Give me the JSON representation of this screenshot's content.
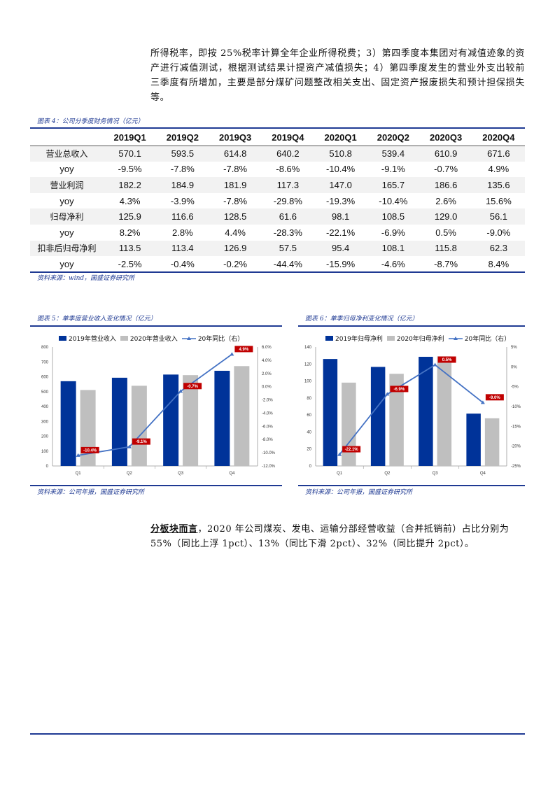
{
  "top_paragraph": "所得税率，即按 25%税率计算全年企业所得税费；3）第四季度本集团对有减值迹象的资产进行减值测试，根据测试结果计提资产减值损失；4）第四季度发生的营业外支出较前三季度有所增加，主要是部分煤矿问题整改相关支出、固定资产报废损失和预计担保损失等。",
  "table": {
    "caption": "图表 4：公司分季度财务情况（亿元）",
    "columns": [
      "2019Q1",
      "2019Q2",
      "2019Q3",
      "2019Q4",
      "2020Q1",
      "2020Q2",
      "2020Q3",
      "2020Q4"
    ],
    "rows": [
      {
        "label": "营业总收入",
        "values": [
          "570.1",
          "593.5",
          "614.8",
          "640.2",
          "510.8",
          "539.4",
          "610.9",
          "671.6"
        ]
      },
      {
        "label": "yoy",
        "values": [
          "-9.5%",
          "-7.8%",
          "-7.8%",
          "-8.6%",
          "-10.4%",
          "-9.1%",
          "-0.7%",
          "4.9%"
        ]
      },
      {
        "label": "营业利润",
        "values": [
          "182.2",
          "184.9",
          "181.9",
          "117.3",
          "147.0",
          "165.7",
          "186.6",
          "135.6"
        ]
      },
      {
        "label": "yoy",
        "values": [
          "4.3%",
          "-3.9%",
          "-7.8%",
          "-29.8%",
          "-19.3%",
          "-10.4%",
          "2.6%",
          "15.6%"
        ]
      },
      {
        "label": "归母净利",
        "values": [
          "125.9",
          "116.6",
          "128.5",
          "61.6",
          "98.1",
          "108.5",
          "129.0",
          "56.1"
        ]
      },
      {
        "label": "yoy",
        "values": [
          "8.2%",
          "2.8%",
          "4.4%",
          "-28.3%",
          "-22.1%",
          "-6.9%",
          "0.5%",
          "-9.0%"
        ]
      },
      {
        "label": "扣非后归母净利",
        "values": [
          "113.5",
          "113.4",
          "126.9",
          "57.5",
          "95.4",
          "108.1",
          "115.8",
          "62.3"
        ]
      },
      {
        "label": "yoy",
        "values": [
          "-2.5%",
          "-0.4%",
          "-0.2%",
          "-44.4%",
          "-15.9%",
          "-4.6%",
          "-8.7%",
          "8.4%"
        ]
      }
    ],
    "source": "资料来源：wind，国盛证券研究所"
  },
  "chart5": {
    "caption": "图表 5：单季度营业收入变化情况（亿元）",
    "source": "资料来源：公司年报，国盛证券研究所"
  },
  "chart6": {
    "caption": "图表 6：单季归母净利变化情况（亿元）",
    "source": "资料来源：公司年报，国盛证券研究所"
  },
  "chart_data": [
    {
      "type": "bar",
      "categories": [
        "Q1",
        "Q2",
        "Q3",
        "Q4"
      ],
      "series": [
        {
          "name": "2019年营业收入",
          "kind": "bar",
          "axis": "left",
          "color": "#003399",
          "values": [
            570.1,
            593.5,
            614.8,
            640.2
          ]
        },
        {
          "name": "2020年营业收入",
          "kind": "bar",
          "axis": "left",
          "color": "#bfbfbf",
          "values": [
            510.8,
            539.4,
            610.9,
            671.6
          ]
        },
        {
          "name": "20年同比（右）",
          "kind": "line",
          "axis": "right",
          "color": "#4472c4",
          "values": [
            -10.4,
            -9.1,
            -0.7,
            4.9
          ],
          "labels": [
            "-10.4%",
            "-9.1%",
            "-0.7%",
            "4.9%"
          ]
        }
      ],
      "ylim": [
        0,
        800
      ],
      "yticks": [
        "0",
        "100",
        "200",
        "300",
        "400",
        "500",
        "600",
        "700",
        "800"
      ],
      "y2lim": [
        -12,
        6
      ],
      "y2ticks": [
        "6.0%",
        "4.0%",
        "2.0%",
        "0.0%",
        "-2.0%",
        "-4.0%",
        "-6.0%",
        "-8.0%",
        "-10.0%",
        "-12.0%"
      ],
      "legend_position": "top"
    },
    {
      "type": "bar",
      "categories": [
        "Q1",
        "Q2",
        "Q3",
        "Q4"
      ],
      "series": [
        {
          "name": "2019年归母净利",
          "kind": "bar",
          "axis": "left",
          "color": "#003399",
          "values": [
            125.9,
            116.6,
            128.5,
            61.6
          ]
        },
        {
          "name": "2020年归母净利",
          "kind": "bar",
          "axis": "left",
          "color": "#bfbfbf",
          "values": [
            98.1,
            108.5,
            129.0,
            56.1
          ]
        },
        {
          "name": "20年同比（右）",
          "kind": "line",
          "axis": "right",
          "color": "#4472c4",
          "values": [
            -22.1,
            -6.9,
            0.5,
            -9.0
          ],
          "labels": [
            "-22.1%",
            "-6.9%",
            "0.5%",
            "-9.0%"
          ]
        }
      ],
      "ylim": [
        0,
        140
      ],
      "yticks": [
        "0",
        "20",
        "40",
        "60",
        "80",
        "100",
        "120",
        "140"
      ],
      "y2lim": [
        -25,
        5
      ],
      "y2ticks": [
        "5%",
        "0%",
        "-5%",
        "-10%",
        "-15%",
        "-20%",
        "-25%"
      ],
      "legend_position": "top"
    }
  ],
  "bottom_paragraph": {
    "lead": "分板块而言",
    "text": "，2020 年公司煤炭、发电、运输分部经营收益（合并抵销前）占比分别为 55%（同比上浮 1pct）、13%（同比下滑 2pct）、32%（同比提升 2pct）。"
  },
  "colors": {
    "accent": "#1f3a93",
    "bar2019": "#003399",
    "bar2020": "#bfbfbf",
    "line": "#4472c4",
    "label_bg": "#c00000"
  }
}
